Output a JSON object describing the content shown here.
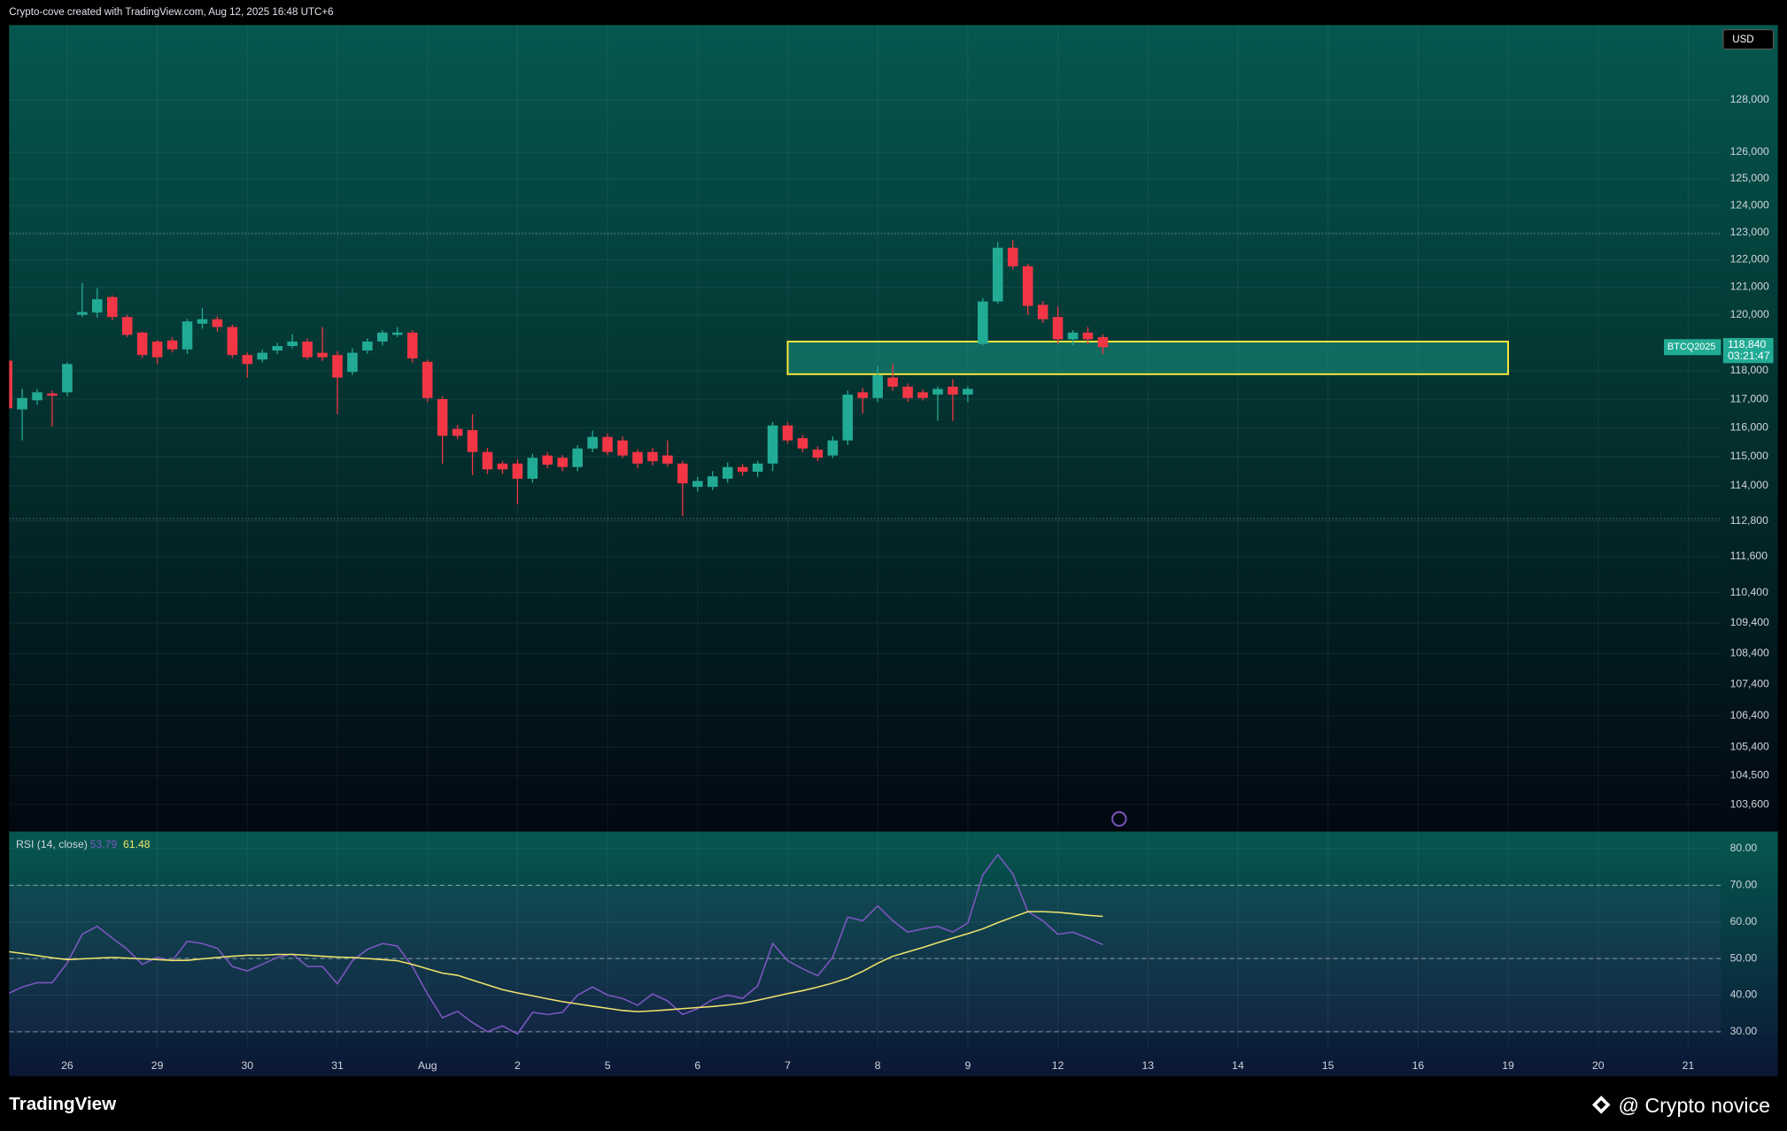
{
  "header": "Crypto-cove created with TradingView.com, Aug 12, 2025 16:48 UTC+6",
  "footer": {
    "logo": "TradingView",
    "author": "@ Crypto novice"
  },
  "chart_data": [
    {
      "type": "candlestick",
      "currency": "USD",
      "symbol": "BTCQ2025",
      "countdown": "03:21:47",
      "log_scale": true,
      "grid": true,
      "ylim": [
        102800,
        130900
      ],
      "yticks": [
        {
          "value": 128000,
          "label": "128,000"
        },
        {
          "value": 126000,
          "label": "126,000"
        },
        {
          "value": 125000,
          "label": "125,000"
        },
        {
          "value": 124000,
          "label": "124,000"
        },
        {
          "value": 123000,
          "label": "123,000"
        },
        {
          "value": 122000,
          "label": "122,000"
        },
        {
          "value": 121000,
          "label": "121,000"
        },
        {
          "value": 120000,
          "label": "120,000"
        },
        {
          "value": 118000,
          "label": "118,000"
        },
        {
          "value": 117000,
          "label": "117,000"
        },
        {
          "value": 116000,
          "label": "116,000"
        },
        {
          "value": 115000,
          "label": "115,000"
        },
        {
          "value": 114000,
          "label": "114,000"
        },
        {
          "value": 112800,
          "label": "112,800"
        },
        {
          "value": 111600,
          "label": "111,600"
        },
        {
          "value": 110400,
          "label": "110,400"
        },
        {
          "value": 109400,
          "label": "109,400"
        },
        {
          "value": 108400,
          "label": "108,400"
        },
        {
          "value": 107400,
          "label": "107,400"
        },
        {
          "value": 106400,
          "label": "106,400"
        },
        {
          "value": 105400,
          "label": "105,400"
        },
        {
          "value": 104500,
          "label": "104,500"
        },
        {
          "value": 103600,
          "label": "103,600"
        }
      ],
      "up_color": "#22ab94",
      "down_color": "#f23645",
      "open": [
        118360,
        116640,
        116960,
        117200,
        117240,
        120000,
        120080,
        120640,
        119920,
        119360,
        119040,
        119080,
        118760,
        119680,
        119840,
        119560,
        118560,
        118400,
        118720,
        118880,
        119040,
        118640,
        118560,
        117960,
        118720,
        119040,
        119280,
        119360,
        118320,
        117000,
        115960,
        115920,
        115160,
        114760,
        114760,
        114240,
        115040,
        114960,
        114640,
        115280,
        115680,
        115560,
        115160,
        115160,
        115040,
        114760,
        113960,
        113960,
        114240,
        114640,
        114480,
        114760,
        116080,
        115640,
        115240,
        115040,
        115560,
        117240,
        117040,
        117760,
        117440,
        117240,
        117160,
        117440,
        117160,
        118960,
        120480,
        122440,
        121760,
        120360,
        119920,
        119120,
        119360,
        119200
      ],
      "high": [
        118440,
        117360,
        117360,
        117300,
        118300,
        121160,
        120960,
        120700,
        120000,
        119400,
        119100,
        119200,
        119850,
        120240,
        119950,
        119650,
        118650,
        118750,
        119000,
        119300,
        119150,
        119560,
        118700,
        118800,
        119150,
        119450,
        119560,
        119450,
        118400,
        117100,
        116100,
        116480,
        115300,
        114850,
        114900,
        115100,
        115150,
        115050,
        115400,
        115900,
        115800,
        115700,
        115250,
        115300,
        115560,
        114850,
        114300,
        114500,
        114800,
        114750,
        114850,
        116200,
        116200,
        115750,
        115350,
        115700,
        117300,
        117400,
        118160,
        118250,
        117550,
        117350,
        117450,
        117700,
        117450,
        120600,
        122640,
        122720,
        121850,
        120500,
        120300,
        119450,
        119560,
        119300
      ],
      "low": [
        115560,
        115560,
        116800,
        116040,
        117100,
        119920,
        119900,
        119800,
        119200,
        118450,
        118240,
        118650,
        118600,
        119500,
        119400,
        118450,
        117760,
        118300,
        118600,
        118800,
        118400,
        118350,
        116480,
        117850,
        118600,
        118900,
        119200,
        118300,
        116900,
        114760,
        115600,
        114360,
        114400,
        114400,
        113360,
        114100,
        114600,
        114500,
        114500,
        115150,
        115050,
        114950,
        114600,
        114700,
        114650,
        112960,
        113800,
        113850,
        114100,
        114350,
        114300,
        114500,
        115450,
        115150,
        114850,
        114950,
        115400,
        116500,
        116900,
        117300,
        116900,
        116950,
        116240,
        116240,
        116900,
        118900,
        120400,
        121650,
        120000,
        119700,
        118950,
        118900,
        118950,
        118600
      ],
      "close": [
        116680,
        117040,
        117240,
        117120,
        118240,
        120100,
        120560,
        119920,
        119280,
        118560,
        118480,
        118760,
        119760,
        119840,
        119560,
        118560,
        118240,
        118640,
        118880,
        119040,
        118480,
        118480,
        117760,
        118640,
        119040,
        119360,
        119360,
        118440,
        117040,
        115720,
        115720,
        115160,
        114560,
        114560,
        114240,
        114960,
        114720,
        114640,
        115280,
        115680,
        115160,
        115040,
        114760,
        114840,
        114760,
        114080,
        114160,
        114320,
        114640,
        114480,
        114760,
        116080,
        115560,
        115280,
        114960,
        115560,
        117160,
        117040,
        117840,
        117440,
        117040,
        117040,
        117360,
        117160,
        117360,
        120480,
        122440,
        121760,
        120320,
        119840,
        119120,
        119360,
        119120,
        118840
      ],
      "last_price": {
        "value": 118840,
        "label": "118,840"
      },
      "levels": [
        122950,
        112880
      ],
      "zone": {
        "x": [
          52,
          100
        ],
        "y": [
          117880,
          119040
        ],
        "color": "#ffeb3b"
      }
    },
    {
      "type": "line",
      "title": "RSI (14, close)",
      "grid": true,
      "ylim": [
        25.6,
        84.7
      ],
      "yticks": [
        {
          "value": 30,
          "label": "30.00"
        },
        {
          "value": 40,
          "label": "40.00"
        },
        {
          "value": 50,
          "label": "50.00"
        },
        {
          "value": 60,
          "label": "60.00"
        },
        {
          "value": 70,
          "label": "70.00"
        },
        {
          "value": 80,
          "label": "80.00"
        }
      ],
      "levels": [
        70,
        50,
        30
      ],
      "series": [
        {
          "color": "#7e57c2",
          "values": [
            40.3,
            42.2,
            43.4,
            43.4,
            48.8,
            56.6,
            58.8,
            55.6,
            52.5,
            48.4,
            50.3,
            49.4,
            54.7,
            54.1,
            52.8,
            47.8,
            46.6,
            48.4,
            50.3,
            51.3,
            47.8,
            47.8,
            43.1,
            49.4,
            52.5,
            54.1,
            53.4,
            47.8,
            40.3,
            33.8,
            35.6,
            32.5,
            30,
            31.6,
            29.4,
            35.3,
            34.7,
            35.3,
            40,
            42.2,
            40,
            39.1,
            37.2,
            40.3,
            38.4,
            34.7,
            36.3,
            38.8,
            40,
            39.1,
            42.5,
            54.1,
            49.4,
            47.2,
            45.3,
            50.3,
            61.3,
            60.3,
            64.4,
            60.3,
            57.2,
            58.1,
            58.8,
            57.2,
            59.7,
            72.8,
            78.4,
            73.1,
            62.8,
            60.3,
            56.6,
            57.2,
            55.6,
            53.79
          ]
        },
        {
          "color": "#f0e36b",
          "values": [
            51.9,
            51.4,
            50.8,
            50.2,
            49.7,
            49.9,
            50.1,
            50.3,
            50.1,
            49.9,
            49.7,
            49.5,
            49.5,
            49.9,
            50.3,
            50.6,
            50.9,
            50.9,
            51.1,
            51.1,
            50.9,
            50.6,
            50.4,
            50.3,
            50,
            49.7,
            49.4,
            48.4,
            47.2,
            46,
            45.4,
            44.1,
            42.8,
            41.5,
            40.6,
            39.8,
            39,
            38.2,
            37.6,
            37,
            36.4,
            35.8,
            35.5,
            35.7,
            36,
            36.3,
            36.6,
            36.9,
            37.3,
            37.8,
            38.6,
            39.5,
            40.4,
            41.2,
            42.2,
            43.3,
            44.6,
            46.5,
            48.7,
            50.6,
            51.8,
            53,
            54.3,
            55.6,
            56.8,
            58.1,
            59.8,
            61.3,
            62.8,
            62.8,
            62.6,
            62.2,
            61.8,
            61.48
          ]
        }
      ],
      "xticks": [
        {
          "value": 4,
          "label": "26"
        },
        {
          "value": 10,
          "label": "29"
        },
        {
          "value": 16,
          "label": "30"
        },
        {
          "value": 22,
          "label": "31"
        },
        {
          "value": 28,
          "label": "Aug"
        },
        {
          "value": 34,
          "label": "2"
        },
        {
          "value": 40,
          "label": "5"
        },
        {
          "value": 46,
          "label": "6"
        },
        {
          "value": 52,
          "label": "7"
        },
        {
          "value": 58,
          "label": "8"
        },
        {
          "value": 64,
          "label": "9"
        },
        {
          "value": 70,
          "label": "12"
        },
        {
          "value": 76,
          "label": "13"
        },
        {
          "value": 82,
          "label": "14"
        },
        {
          "value": 88,
          "label": "15"
        },
        {
          "value": 94,
          "label": "16"
        },
        {
          "value": 100,
          "label": "19"
        },
        {
          "value": 106,
          "label": "20"
        },
        {
          "value": 112,
          "label": "21"
        }
      ]
    }
  ]
}
